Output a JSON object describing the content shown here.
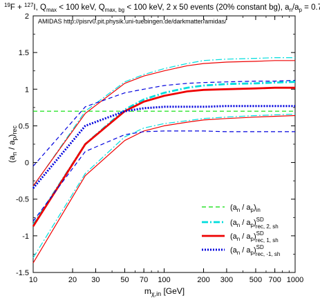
{
  "chart_data": {
    "type": "line",
    "title": "19F + 127I, Qmax < 100 keV, Qmax,bg < 100 keV, 2 x 50 events (20% constant bg), an/ap = 0.7",
    "watermark": "AMIDAS   http://pisrv0.pit.physik.uni-tuebingen.de/darkmatter/amidas/",
    "xlabel": "mχ,in [GeV]",
    "ylabel": "(an / ap)rec",
    "xscale": "log",
    "xlim": [
      10,
      1000
    ],
    "ylim": [
      -1.5,
      2
    ],
    "xticks": [
      10,
      20,
      30,
      50,
      70,
      100,
      200,
      300,
      500,
      700,
      1000
    ],
    "xtick_labels": [
      "10",
      "20",
      "30",
      "50",
      "70",
      "100",
      "200",
      "300",
      "500",
      "700",
      "1000"
    ],
    "yticks": [
      -1.5,
      -1,
      -0.5,
      0,
      0.5,
      1,
      1.5,
      2
    ],
    "ytick_labels": [
      "-1.5",
      "-1",
      "-0.5",
      "0",
      "0.5",
      "1",
      "1.5",
      "2"
    ],
    "grid": false,
    "legend_position": "bottom-right",
    "x": [
      10,
      25,
      50,
      70,
      100,
      150,
      200,
      300,
      500,
      700,
      1000
    ],
    "series": [
      {
        "name": "(an / ap)in",
        "style": "dashed",
        "color": "#00dd00",
        "width": 1.2,
        "values": [
          0.7,
          0.7,
          0.7,
          0.7,
          0.7,
          0.7,
          0.7,
          0.7,
          0.7,
          0.7,
          0.7
        ]
      },
      {
        "name": "(an / ap)SDrec, 2, sh",
        "style": "dashdot",
        "color": "#00dddd",
        "width": 2.8,
        "values": [
          -0.85,
          0.25,
          0.72,
          0.86,
          0.95,
          1.02,
          1.05,
          1.07,
          1.08,
          1.09,
          1.1
        ]
      },
      {
        "name": "",
        "style": "dashdot",
        "color": "#00dddd",
        "width": 1.2,
        "values": [
          -0.33,
          0.7,
          1.1,
          1.2,
          1.28,
          1.35,
          1.39,
          1.41,
          1.42,
          1.43,
          1.43
        ]
      },
      {
        "name": "",
        "style": "dashdot",
        "color": "#00dddd",
        "width": 1.2,
        "values": [
          -1.3,
          -0.15,
          0.35,
          0.47,
          0.53,
          0.57,
          0.6,
          0.62,
          0.64,
          0.65,
          0.66
        ]
      },
      {
        "name": "(an / ap)SDrec, 1, sh",
        "style": "solid",
        "color": "#ee0000",
        "width": 2.8,
        "values": [
          -0.87,
          0.25,
          0.7,
          0.83,
          0.91,
          0.97,
          0.99,
          1.0,
          1.01,
          1.02,
          1.02
        ]
      },
      {
        "name": "",
        "style": "solid",
        "color": "#ee0000",
        "width": 1.2,
        "values": [
          -0.32,
          0.67,
          1.08,
          1.18,
          1.25,
          1.32,
          1.35,
          1.37,
          1.38,
          1.39,
          1.39
        ]
      },
      {
        "name": "",
        "style": "solid",
        "color": "#ee0000",
        "width": 1.2,
        "values": [
          -1.37,
          -0.18,
          0.3,
          0.43,
          0.5,
          0.55,
          0.58,
          0.6,
          0.62,
          0.63,
          0.64
        ]
      },
      {
        "name": "(an / ap)SDrec, -1, sh",
        "style": "dotted",
        "color": "#0000dd",
        "width": 3.0,
        "values": [
          -0.35,
          0.5,
          0.7,
          0.74,
          0.76,
          0.76,
          0.76,
          0.77,
          0.77,
          0.77,
          0.77
        ]
      },
      {
        "name": "",
        "style": "dashed",
        "color": "#0000dd",
        "width": 1.2,
        "values": [
          -0.05,
          0.76,
          0.95,
          1.0,
          1.05,
          1.08,
          1.09,
          1.1,
          1.11,
          1.11,
          1.12
        ]
      },
      {
        "name": "",
        "style": "dashed",
        "color": "#0000dd",
        "width": 1.2,
        "values": [
          -0.8,
          0.15,
          0.38,
          0.42,
          0.43,
          0.43,
          0.43,
          0.42,
          0.42,
          0.42,
          0.42
        ]
      }
    ]
  }
}
